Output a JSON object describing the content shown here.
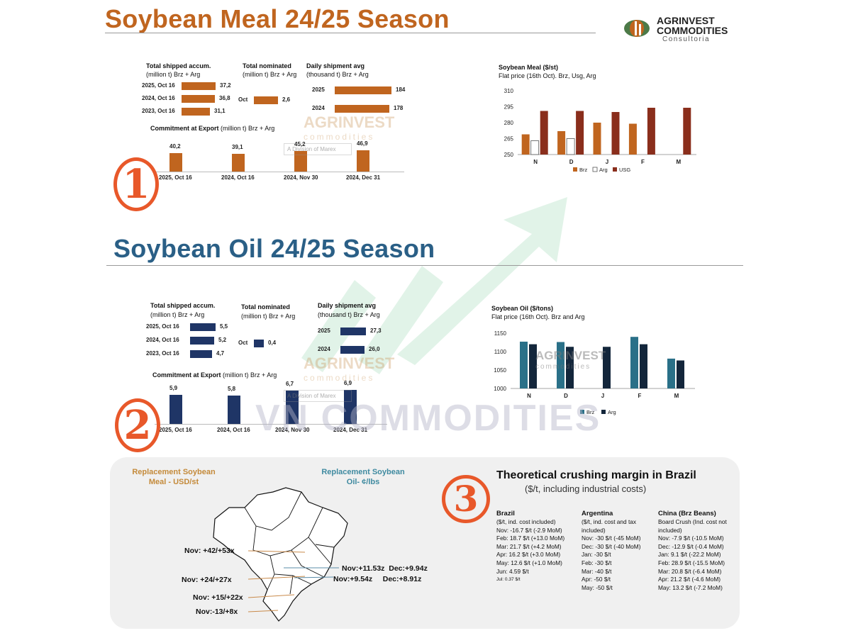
{
  "meal": {
    "title": "Soybean Meal 24/25 Season",
    "shipped": {
      "label1": "Total shipped accum.",
      "label2": "(million t) Brz + Arg",
      "rows": [
        {
          "label": "2025, Oct 16",
          "value": 37.2,
          "text": "37,2"
        },
        {
          "label": "2024, Oct 16",
          "value": 36.8,
          "text": "36,8"
        },
        {
          "label": "2023, Oct 16",
          "value": 31.1,
          "text": "31,1"
        }
      ]
    },
    "nominated": {
      "label1": "Total nominated",
      "label2": "(million t) Brz + Arg",
      "rows": [
        {
          "label": "Oct",
          "value": 2.6,
          "text": "2,6"
        }
      ]
    },
    "daily": {
      "label1": "Daily shipment avg",
      "label2": "(thousand t) Brz + Arg",
      "rows": [
        {
          "label": "2025",
          "value": 184,
          "text": "184"
        },
        {
          "label": "2024",
          "value": 178,
          "text": "178"
        }
      ]
    },
    "commitment": {
      "label": "Commitment at Export",
      "label_suffix": " (million t) Brz + Arg",
      "items": [
        {
          "label": "2025, Oct 16",
          "value": 40.2,
          "text": "40,2"
        },
        {
          "label": "2024, Oct 16",
          "value": 39.1,
          "text": "39,1"
        },
        {
          "label": "2024, Nov 30",
          "value": 45.2,
          "text": "45,2"
        },
        {
          "label": "2024, Dec 31",
          "value": 46.9,
          "text": "46,9"
        }
      ]
    },
    "circle_num": "1"
  },
  "oil": {
    "title": "Soybean Oil 24/25 Season",
    "shipped": {
      "label1": "Total shipped accum.",
      "label2": "(million t) Brz + Arg",
      "rows": [
        {
          "label": "2025, Oct 16",
          "value": 5.5,
          "text": "5,5"
        },
        {
          "label": "2024, Oct 16",
          "value": 5.2,
          "text": "5,2"
        },
        {
          "label": "2023, Oct 16",
          "value": 4.7,
          "text": "4,7"
        }
      ]
    },
    "nominated": {
      "label1": "Total nominated",
      "label2": "(million t) Brz + Arg",
      "rows": [
        {
          "label": "Oct",
          "value": 0.4,
          "text": "0,4"
        }
      ]
    },
    "daily": {
      "label1": "Daily shipment avg",
      "label2": "(thousand t) Brz + Arg",
      "rows": [
        {
          "label": "2025",
          "value": 27.3,
          "text": "27,3"
        },
        {
          "label": "2024",
          "value": 26.0,
          "text": "26,0"
        }
      ]
    },
    "commitment": {
      "label": "Commitment at Export",
      "label_suffix": " (million t) Brz + Arg",
      "items": [
        {
          "label": "2025, Oct 16",
          "value": 5.9,
          "text": "5,9"
        },
        {
          "label": "2024, Oct 16",
          "value": 5.8,
          "text": "5,8"
        },
        {
          "label": "2024, Nov 30",
          "value": 6.7,
          "text": "6,7"
        },
        {
          "label": "2024, Dec 31",
          "value": 6.9,
          "text": "6,9"
        }
      ]
    },
    "circle_num": "2"
  },
  "logo": {
    "line1": "AGRINVEST",
    "line2": "COMMODITIES",
    "line3": "Consultoria"
  },
  "watermark": {
    "brand": "VN COMMODITIES",
    "agr1": "AGRINVEST",
    "agr2": "commodities",
    "agr3": "A Division of Marex"
  },
  "chart_data": [
    {
      "type": "bar",
      "title": "Soybean Meal ($/st)",
      "subtitle": "Flat price (16th Oct). Brz, Usg, Arg",
      "categories": [
        "N",
        "D",
        "J",
        "F",
        "M"
      ],
      "ylim": [
        250,
        310
      ],
      "yticks": [
        250,
        265,
        280,
        295,
        310
      ],
      "series": [
        {
          "name": "Brz",
          "color": "#c0651f",
          "values": [
            269,
            272,
            280,
            279,
            null
          ]
        },
        {
          "name": "Arg",
          "color": "#ffffff",
          "values": [
            263,
            265,
            null,
            null,
            null
          ]
        },
        {
          "name": "USG",
          "color": "#8a2e1c",
          "values": [
            291,
            291,
            290,
            294,
            294
          ]
        }
      ],
      "legend": "bottom"
    },
    {
      "type": "bar",
      "title": "Soybean Oil ($/tons)",
      "subtitle": "Flat price (16th Oct). Brz and Arg",
      "categories": [
        "N",
        "D",
        "J",
        "F",
        "M"
      ],
      "ylim": [
        1000,
        1150
      ],
      "yticks": [
        1000,
        1050,
        1100,
        1150
      ],
      "series": [
        {
          "name": "Brz",
          "color": "#2a7088",
          "values": [
            1127,
            1126,
            null,
            1140,
            1081
          ]
        },
        {
          "name": "Arg",
          "color": "#13263b",
          "values": [
            1120,
            1113,
            1113,
            1120,
            1076
          ]
        }
      ],
      "legend": "bottom"
    }
  ],
  "bottom": {
    "meal_label1": "Replacement  Soybean",
    "meal_label2": "Meal - USD/st",
    "oil_label1": "Replacement Soybean",
    "oil_label2": "Oil- ¢/lbs",
    "map_labels": [
      "Nov: +42/+53x",
      "Nov: +24/+27x",
      "Nov: +15/+22x",
      "Nov:-13/+8x",
      "Nov:+11.53z  Dec:+9.94z",
      "Nov:+9.54z     Dec:+8.91z"
    ],
    "crush_title": "Theoretical crushing margin in Brazil",
    "crush_subtitle": "($/t, including industrial costs)",
    "circle_num": "3",
    "columns": [
      {
        "head": "Brazil",
        "sub": [
          "($/t, ind. cost included)"
        ],
        "lines": [
          "Nov: -16.7 $/t (-2.9 MoM)",
          "Feb: 18.7 $/t (+13.0 MoM)",
          "Mar: 21.7 $/t (+4.2 MoM)",
          "Apr: 16.2 $/t (+3.0 MoM)",
          "May: 12.6 $/t (+1.0 MoM)",
          "Jun: 4.59 $/t",
          "Jul: 0.37 $/t"
        ]
      },
      {
        "head": "Argentina",
        "sub": [
          "($/t, ind. cost  and tax",
          "included)"
        ],
        "lines": [
          "Nov: -30 $/t (-45 MoM)",
          "Dec: -30 $/t (-40 MoM)",
          "Jan: -30 $/t",
          "Feb: -30 $/t",
          "Mar: -40 $/t",
          "Apr: -50 $/t",
          "May: -50 $/t"
        ]
      },
      {
        "head": "China (Brz Beans)",
        "sub": [
          "Board Crush (Ind. cost not",
          "included)"
        ],
        "lines": [
          "Nov: -7.9 $/t (-10.5 MoM)",
          "Dec: -12.9 $/t (-0.4 MoM)",
          "Jan: 9.1 $/t (-22.2 MoM)",
          "Feb: 28.9 $/t (-15.5 MoM)",
          "Mar: 20.8 $/t (-6.4 MoM)",
          "Apr: 21.2 $/t (-4.6 MoM)",
          "May: 13.2 $/t (-7.2 MoM)"
        ]
      }
    ]
  }
}
